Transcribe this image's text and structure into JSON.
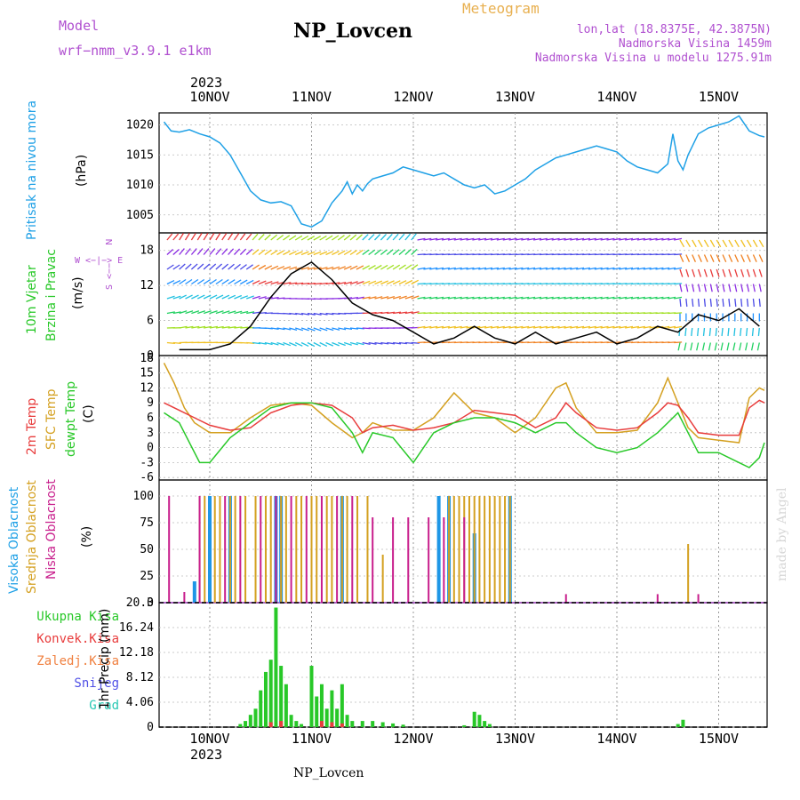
{
  "header": {
    "model_label": "Model",
    "model_name": "wrf−nmm_v3.9.1  e1km",
    "station": "NP_Lovcen",
    "kind": "Meteogram",
    "lonlat": "lon,lat (18.8375E, 42.3875N)",
    "elev": "Nadmorska Visina 1459m",
    "elev_model": "Nadmorska Visina u modelu 1275.91m",
    "year": "2023",
    "footer": "NP_Lovcen",
    "credit": "made by Angel"
  },
  "dates": [
    "10NOV",
    "11NOV",
    "12NOV",
    "13NOV",
    "14NOV",
    "15NOV"
  ],
  "panels": {
    "pressure": {
      "l1": "Pritisak na nivou mora",
      "unit": "(hPa)"
    },
    "wind": {
      "l1": "10m Vjetar",
      "l2": "Brzina i Pravac",
      "unit": "(m/s)",
      "compass_n": "N",
      "compass_we": "W <−|−> E",
      "compass_s": "S <−−"
    },
    "temp": {
      "l1": "2m Temp",
      "l2": "SFC Temp",
      "l3": "dewpt Temp",
      "unit": "(C)"
    },
    "cloud": {
      "l1": "Visoka Oblacnost",
      "l2": "Srednja Oblacnost",
      "l3": "Niska Oblacnost",
      "unit": "(%)"
    },
    "precip": {
      "l1": "Ukupna Kisa",
      "l2": "Konvek.Kisa",
      "l3": "Zaledj.Kisa",
      "l4": "Snijeg",
      "l5": "Grad",
      "unit": "1hr Precip (mm)"
    }
  },
  "colors": {
    "pressure": "#1ea0e6",
    "t2m": "#e83c3c",
    "tsfc": "#d4a020",
    "dewpt": "#28c828",
    "high_cloud": "#1e96e6",
    "mid_cloud": "#d4a020",
    "low_cloud": "#c81e8c",
    "total_rain": "#28c828",
    "conv_rain": "#e83c3c",
    "freezing": "#f08040",
    "snow": "#5050e6",
    "hail": "#28c8b4",
    "title_purple": "#b050d0",
    "orange": "#e8b050"
  },
  "chart_data": [
    {
      "type": "line",
      "title": "",
      "ylabel": "(hPa)",
      "ylim": [
        1002,
        1022
      ],
      "yticks": [
        1005,
        1010,
        1015,
        1020
      ],
      "x_days": [
        0,
        5.9
      ],
      "series": [
        {
          "name": "Pritisak na nivou mora",
          "x": [
            -0.45,
            -0.38,
            -0.3,
            -0.2,
            -0.1,
            0,
            0.1,
            0.2,
            0.3,
            0.4,
            0.5,
            0.6,
            0.7,
            0.8,
            0.9,
            1.0,
            1.1,
            1.2,
            1.3,
            1.35,
            1.4,
            1.45,
            1.5,
            1.55,
            1.6,
            1.7,
            1.8,
            1.9,
            2.0,
            2.1,
            2.2,
            2.3,
            2.4,
            2.5,
            2.6,
            2.7,
            2.8,
            2.9,
            3.0,
            3.1,
            3.2,
            3.3,
            3.4,
            3.5,
            3.6,
            3.7,
            3.8,
            3.9,
            4.0,
            4.1,
            4.2,
            4.3,
            4.4,
            4.5,
            4.55,
            4.6,
            4.65,
            4.7,
            4.8,
            4.9,
            5.0,
            5.1,
            5.2,
            5.3,
            5.4,
            5.45
          ],
          "y": [
            1020.5,
            1019,
            1018.8,
            1019.2,
            1018.5,
            1018,
            1017,
            1015,
            1012,
            1009,
            1007.5,
            1007,
            1007.2,
            1006.5,
            1003.5,
            1003,
            1004,
            1007,
            1009,
            1010.5,
            1008.5,
            1010,
            1009,
            1010.2,
            1011,
            1011.5,
            1012,
            1013,
            1012.5,
            1012,
            1011.5,
            1012,
            1011,
            1010,
            1009.5,
            1010,
            1008.5,
            1009,
            1010,
            1011,
            1012.5,
            1013.5,
            1014.5,
            1015,
            1015.5,
            1016,
            1016.5,
            1016,
            1015.5,
            1014,
            1013,
            1012.5,
            1012,
            1013.5,
            1018.5,
            1014,
            1012.5,
            1015,
            1018.5,
            1019.5,
            1020,
            1020.5,
            1021.5,
            1019,
            1018.2,
            1018
          ]
        }
      ]
    },
    {
      "type": "line",
      "title": "",
      "ylabel": "(m/s)",
      "ylim": [
        0,
        21
      ],
      "yticks": [
        0,
        6,
        12,
        18
      ],
      "series": [
        {
          "name": "Brzina",
          "x": [
            -0.3,
            0,
            0.2,
            0.4,
            0.6,
            0.8,
            1.0,
            1.2,
            1.4,
            1.6,
            1.8,
            2.0,
            2.2,
            2.4,
            2.6,
            2.8,
            3.0,
            3.2,
            3.4,
            3.6,
            3.8,
            4.0,
            4.2,
            4.4,
            4.6,
            4.8,
            5.0,
            5.2,
            5.4
          ],
          "y": [
            1,
            1,
            2,
            5,
            10,
            14,
            16,
            13,
            9,
            7,
            6,
            4,
            2,
            3,
            5,
            3,
            2,
            4,
            2,
            3,
            4,
            2,
            3,
            5,
            4,
            7,
            6,
            8,
            5
          ]
        }
      ]
    },
    {
      "type": "line",
      "title": "",
      "ylabel": "(C)",
      "ylim": [
        -6,
        18
      ],
      "yticks": [
        -6,
        -3,
        0,
        3,
        6,
        9,
        12,
        15,
        18
      ],
      "series": [
        {
          "name": "2m Temp",
          "x": [
            -0.45,
            -0.3,
            -0.15,
            0,
            0.2,
            0.4,
            0.6,
            0.8,
            1.0,
            1.2,
            1.4,
            1.5,
            1.6,
            1.8,
            2.0,
            2.2,
            2.4,
            2.6,
            2.8,
            3.0,
            3.2,
            3.4,
            3.5,
            3.6,
            3.8,
            4.0,
            4.2,
            4.4,
            4.5,
            4.6,
            4.7,
            4.8,
            5.0,
            5.2,
            5.3,
            5.4,
            5.45
          ],
          "y": [
            9,
            7.5,
            6,
            4.5,
            3.5,
            4,
            7,
            8.5,
            9,
            8.5,
            6,
            3,
            4,
            4.5,
            3.5,
            4,
            5,
            7.5,
            7,
            6.5,
            4,
            6,
            9,
            7,
            4,
            3.5,
            4,
            7,
            9,
            8.5,
            6,
            3,
            2.5,
            2.5,
            8,
            9.5,
            9
          ]
        },
        {
          "name": "SFC Temp",
          "x": [
            -0.45,
            -0.35,
            -0.25,
            -0.15,
            0,
            0.2,
            0.4,
            0.6,
            0.8,
            1.0,
            1.2,
            1.4,
            1.5,
            1.6,
            1.8,
            2.0,
            2.2,
            2.4,
            2.6,
            2.8,
            3.0,
            3.2,
            3.4,
            3.5,
            3.6,
            3.8,
            4.0,
            4.2,
            4.4,
            4.5,
            4.6,
            4.7,
            4.8,
            5.0,
            5.2,
            5.3,
            5.4,
            5.45
          ],
          "y": [
            17,
            13,
            8,
            5,
            3,
            3,
            6,
            8.5,
            9,
            8.5,
            5,
            2,
            3,
            5,
            3.5,
            3.5,
            6,
            11,
            7,
            6,
            3,
            6,
            12,
            13,
            8,
            3,
            3,
            3.5,
            9,
            14,
            9,
            4,
            2,
            1.5,
            1,
            10,
            12,
            11.5
          ]
        },
        {
          "name": "dewpt Temp",
          "x": [
            -0.45,
            -0.3,
            -0.1,
            0,
            0.2,
            0.4,
            0.6,
            0.8,
            1.0,
            1.2,
            1.4,
            1.5,
            1.6,
            1.8,
            2.0,
            2.2,
            2.4,
            2.6,
            2.8,
            3.0,
            3.2,
            3.4,
            3.5,
            3.6,
            3.8,
            4.0,
            4.2,
            4.4,
            4.5,
            4.6,
            4.7,
            4.8,
            5.0,
            5.2,
            5.3,
            5.4,
            5.45
          ],
          "y": [
            7,
            5,
            -3,
            -3,
            2,
            5,
            8,
            9,
            9,
            8,
            3,
            -1,
            3,
            2,
            -3,
            3,
            5,
            6,
            6,
            5,
            3,
            5,
            5,
            3,
            0,
            -1,
            0,
            3,
            5,
            7,
            3,
            -1,
            -1,
            -3,
            -4,
            -2,
            1
          ]
        }
      ]
    },
    {
      "type": "bar",
      "title": "",
      "ylabel": "(%)",
      "ylim": [
        0,
        100
      ],
      "yticks": [
        0,
        25,
        50,
        75,
        100
      ],
      "series": [
        {
          "name": "Visoka Oblacnost",
          "x": [
            -0.15,
            0,
            0.2,
            0.65,
            0.7,
            1.3,
            2.25,
            2.35,
            2.6,
            2.95
          ],
          "values": [
            20,
            100,
            100,
            100,
            100,
            100,
            100,
            100,
            65,
            100
          ]
        },
        {
          "name": "Srednja Oblacnost",
          "x": [
            -0.1,
            -0.05,
            0.05,
            0.1,
            0.2,
            0.25,
            0.35,
            0.45,
            0.55,
            0.6,
            0.7,
            0.75,
            0.85,
            0.9,
            1.0,
            1.05,
            1.15,
            1.2,
            1.3,
            1.35,
            1.45,
            1.55,
            1.7,
            2.35,
            2.4,
            2.45,
            2.5,
            2.55,
            2.6,
            2.65,
            2.7,
            2.75,
            2.8,
            2.85,
            2.9,
            2.95,
            4.7
          ],
          "values": [
            100,
            100,
            100,
            100,
            100,
            100,
            100,
            100,
            100,
            100,
            100,
            100,
            100,
            100,
            100,
            100,
            100,
            100,
            100,
            100,
            100,
            100,
            45,
            100,
            100,
            100,
            100,
            100,
            100,
            100,
            100,
            100,
            100,
            100,
            100,
            100,
            55
          ]
        },
        {
          "name": "Niska Oblacnost",
          "x": [
            -0.4,
            -0.25,
            -0.1,
            0.15,
            0.3,
            0.5,
            0.65,
            0.8,
            0.95,
            1.1,
            1.25,
            1.4,
            1.6,
            1.8,
            1.95,
            2.15,
            2.3,
            2.5,
            3.5,
            4.4,
            4.8
          ],
          "values": [
            100,
            10,
            100,
            100,
            100,
            100,
            100,
            100,
            100,
            100,
            100,
            100,
            80,
            80,
            80,
            80,
            80,
            80,
            8,
            8,
            8
          ]
        }
      ]
    },
    {
      "type": "bar",
      "title": "",
      "ylabel": "1hr Precip (mm)",
      "ylim": [
        0,
        20.3
      ],
      "yticks": [
        0,
        4.06,
        8.12,
        12.18,
        16.24,
        20.3
      ],
      "series": [
        {
          "name": "Ukupna Kisa",
          "x": [
            0.3,
            0.35,
            0.4,
            0.45,
            0.5,
            0.55,
            0.6,
            0.65,
            0.7,
            0.75,
            0.8,
            0.85,
            0.9,
            1.0,
            1.05,
            1.1,
            1.15,
            1.2,
            1.25,
            1.3,
            1.35,
            1.4,
            1.5,
            1.6,
            1.7,
            1.8,
            1.9,
            2.5,
            2.6,
            2.65,
            2.7,
            2.75,
            4.6,
            4.65
          ],
          "values": [
            0.5,
            1,
            2,
            3,
            6,
            9,
            11,
            19.5,
            10,
            7,
            2,
            1,
            0.5,
            10,
            5,
            7,
            3,
            6,
            3,
            7,
            2,
            1,
            1,
            1,
            0.8,
            0.6,
            0.4,
            0.3,
            2.5,
            2,
            1,
            0.5,
            0.5,
            1.2
          ]
        },
        {
          "name": "Konvek.Kisa",
          "x": [
            0.6,
            0.7,
            1.1,
            1.2,
            1.3
          ],
          "values": [
            0.8,
            1,
            1,
            0.8,
            0.6
          ]
        },
        {
          "name": "Zaledj.Kisa",
          "x": [],
          "values": []
        },
        {
          "name": "Snijeg",
          "x": [],
          "values": []
        },
        {
          "name": "Grad",
          "x": [],
          "values": []
        }
      ]
    }
  ]
}
